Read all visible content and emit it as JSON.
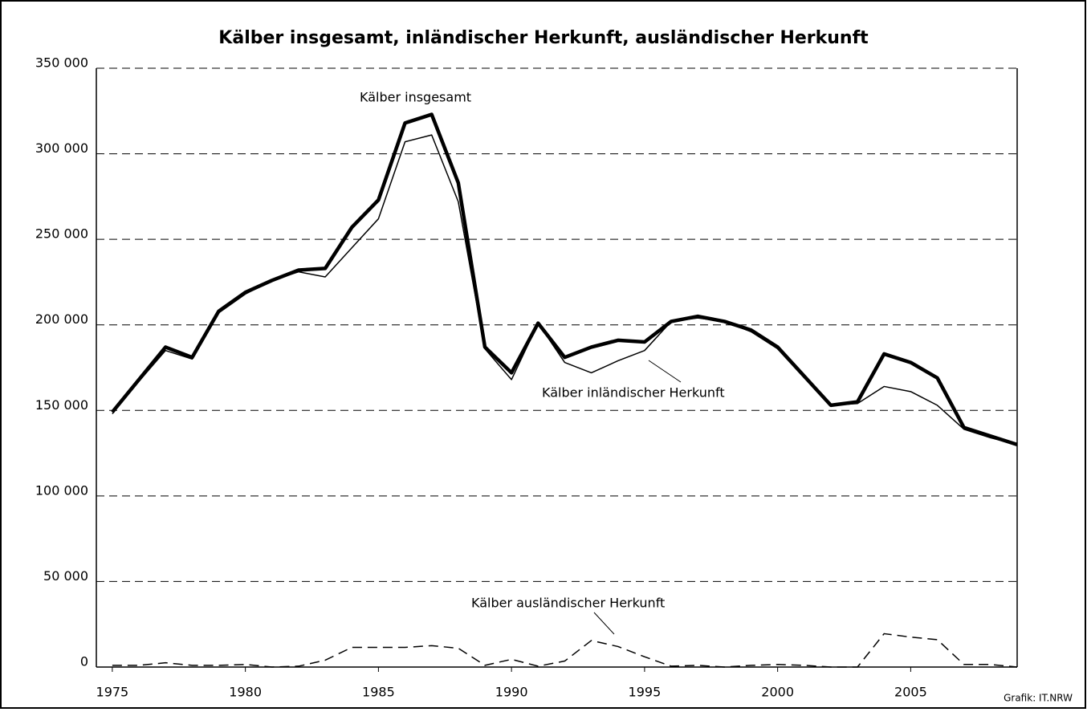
{
  "chart_data": {
    "type": "line",
    "title": "Kälber insgesamt, inländischer Herkunft, ausländischer Herkunft",
    "x": [
      1975,
      1976,
      1977,
      1978,
      1979,
      1980,
      1981,
      1982,
      1983,
      1984,
      1985,
      1986,
      1987,
      1988,
      1989,
      1990,
      1991,
      1992,
      1993,
      1994,
      1995,
      1996,
      1997,
      1998,
      1999,
      2000,
      2001,
      2002,
      2003,
      2004,
      2005,
      2006,
      2007,
      2008,
      2009
    ],
    "series": [
      {
        "name": "Kälber insgesamt",
        "color": "#000000",
        "line_style": "thick",
        "values": [
          149000,
          168000,
          187000,
          181000,
          208000,
          219000,
          226000,
          232000,
          233000,
          257000,
          273000,
          318000,
          323000,
          283000,
          187000,
          172000,
          201000,
          181000,
          187000,
          191000,
          190000,
          202000,
          205000,
          202000,
          197000,
          187000,
          170000,
          153000,
          155000,
          183000,
          178000,
          169000,
          140000,
          135000,
          130000
        ]
      },
      {
        "name": "Kälber inländischer Herkunft",
        "color": "#000000",
        "line_style": "thin",
        "values": [
          148000,
          167000,
          185000,
          180000,
          207000,
          218000,
          226000,
          231000,
          228000,
          245000,
          262000,
          307000,
          311000,
          272000,
          186000,
          168000,
          201000,
          178000,
          172000,
          179000,
          185000,
          202000,
          204000,
          202000,
          196000,
          186000,
          169000,
          153000,
          154000,
          164000,
          161000,
          153000,
          139000,
          134000,
          130000
        ]
      },
      {
        "name": "Kälber ausländischer Herkunft",
        "color": "#000000",
        "line_style": "dashed",
        "values": [
          1000,
          1000,
          2500,
          1000,
          1000,
          1500,
          0,
          500,
          4000,
          11500,
          11500,
          11500,
          12500,
          11000,
          1000,
          4500,
          500,
          3500,
          15500,
          12000,
          6000,
          500,
          1000,
          0,
          1000,
          1500,
          1000,
          0,
          0,
          19500,
          17500,
          16000,
          1500,
          1500,
          0
        ]
      }
    ],
    "xlim": [
      1974.4,
      2009
    ],
    "xticks": [
      1975,
      1980,
      1985,
      1990,
      1995,
      2000,
      2005
    ],
    "ylim": [
      0,
      350000
    ],
    "yticks": [
      {
        "value": 0,
        "label": "0"
      },
      {
        "value": 50000,
        "label": "50 000"
      },
      {
        "value": 100000,
        "label": "100 000"
      },
      {
        "value": 150000,
        "label": "150 000"
      },
      {
        "value": 200000,
        "label": "200 000"
      },
      {
        "value": 250000,
        "label": "250 000"
      },
      {
        "value": 300000,
        "label": "300 000"
      },
      {
        "value": 350000,
        "label": "350 000"
      }
    ],
    "grid": true,
    "source": "Grafik: IT.NRW"
  }
}
